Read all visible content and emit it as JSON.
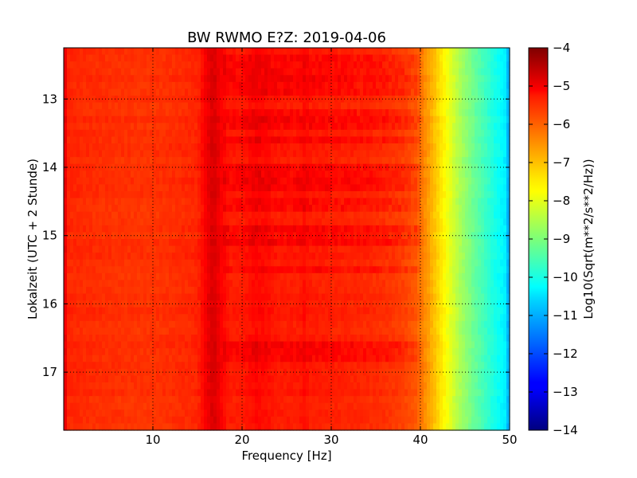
{
  "chart_data": {
    "type": "heatmap",
    "title": "BW RWMO E?Z: 2019-04-06",
    "xlabel": "Frequency [Hz]",
    "ylabel": "Lokalzeit (UTC + 2 Stunde)",
    "colorbar_label": "Log10(Sqrt(m**2/s**2/Hz))",
    "xlim": [
      0,
      50
    ],
    "ylim": [
      12.25,
      17.85
    ],
    "y_inverted": true,
    "x_ticks": [
      10,
      20,
      30,
      40,
      50
    ],
    "x_tick_labels": [
      "10",
      "20",
      "30",
      "40",
      "50"
    ],
    "y_ticks": [
      13,
      14,
      15,
      16,
      17
    ],
    "y_tick_labels": [
      "13",
      "14",
      "15",
      "16",
      "17"
    ],
    "grid": true,
    "colormap": "jet",
    "color_range": [
      -14,
      -4
    ],
    "colorbar_ticks": [
      -4,
      -5,
      -6,
      -7,
      -8,
      -9,
      -10,
      -11,
      -12,
      -13,
      -14
    ],
    "colorbar_tick_labels": [
      "−4",
      "−5",
      "−6",
      "−7",
      "−8",
      "−9",
      "−10",
      "−11",
      "−12",
      "−13",
      "−14"
    ],
    "spectrum_profile": {
      "frequency_hz": [
        0,
        0.5,
        2,
        5,
        10,
        15,
        16.2,
        16.8,
        17.4,
        18.5,
        20,
        21.5,
        22.5,
        24,
        26.5,
        27,
        27.5,
        30,
        33,
        36,
        38,
        39.5,
        40.5,
        41.5,
        42.5,
        43.5,
        44.5,
        46,
        48,
        49.5,
        50
      ],
      "level_log10": [
        -4.8,
        -5.6,
        -5.65,
        -5.7,
        -5.75,
        -5.6,
        -5.05,
        -4.85,
        -5.1,
        -5.5,
        -5.5,
        -5.3,
        -5.35,
        -5.5,
        -5.5,
        -5.35,
        -5.5,
        -5.55,
        -5.6,
        -5.7,
        -5.85,
        -6.1,
        -6.6,
        -7.1,
        -7.6,
        -8.1,
        -8.6,
        -9.2,
        -9.9,
        -10.4,
        -11.2
      ]
    },
    "bright_bands_hour": [
      12.45,
      12.65,
      12.85,
      13.2,
      13.35,
      13.6,
      14.05,
      14.2,
      14.3,
      14.55,
      14.62,
      14.95,
      15.1,
      15.5,
      16.65,
      16.8
    ]
  }
}
